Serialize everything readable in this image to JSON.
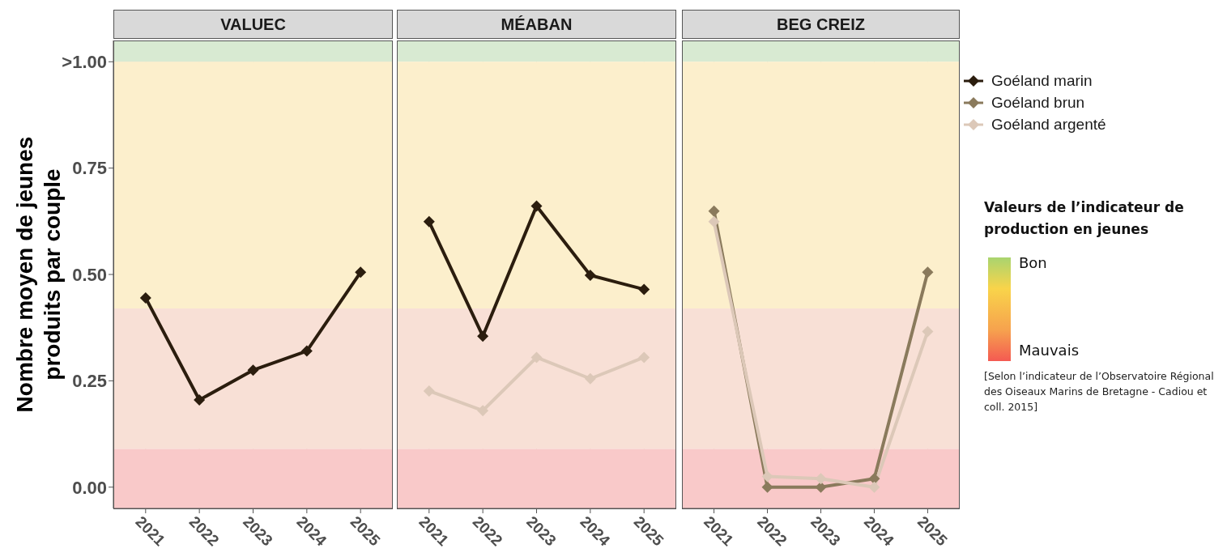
{
  "chart_data": [
    {
      "type": "line",
      "title": "VALUEC",
      "ylabel": "Nombre moyen de jeunes produits par couple",
      "categories": [
        "2021",
        "2022",
        "2023",
        "2024",
        "2025"
      ],
      "series": [
        {
          "name": "Goéland marin",
          "color": "#2b1d0e",
          "values": [
            0.445,
            0.205,
            0.275,
            0.32,
            0.505
          ]
        }
      ],
      "ylim": [
        -0.05,
        1.05
      ],
      "yticks": [
        {
          "value": 0,
          "label": "0.00"
        },
        0.25,
        {
          "value": 0.5,
          "label": "0.50"
        },
        0.75,
        {
          "value": 1,
          "label": ">1.00"
        }
      ],
      "grid": true,
      "marker": "diamond",
      "line_style": "solid",
      "bands": [
        {
          "axis": "y",
          "from": 1,
          "to": 1.05,
          "color": "#d8ead2"
        },
        {
          "axis": "y",
          "from": 0.42,
          "to": 1,
          "color": "#fcefcc"
        },
        {
          "axis": "y",
          "from": 0.09,
          "to": 0.42,
          "color": "#f8e0d6"
        },
        {
          "axis": "y",
          "from": -0.05,
          "to": 0.09,
          "color": "#f9c9c9"
        }
      ]
    },
    {
      "type": "line",
      "title": "MÉABAN",
      "categories": [
        "2021",
        "2022",
        "2023",
        "2024",
        "2025"
      ],
      "series": [
        {
          "name": "Goéland marin",
          "color": "#2b1d0e",
          "values": [
            0.624,
            0.355,
            0.661,
            0.498,
            0.465
          ]
        },
        {
          "name": "Goéland argenté",
          "color": "#dcc8b8",
          "values": [
            0.226,
            0.18,
            0.305,
            0.255,
            0.305
          ]
        }
      ],
      "ylim": [
        -0.05,
        1.05
      ],
      "yticks": [
        0,
        0.25,
        0.5,
        0.75,
        1
      ],
      "tick_labels": "x",
      "grid": true,
      "marker": "diamond",
      "line_style": "solid",
      "bands": [
        {
          "axis": "y",
          "from": 1,
          "to": 1.05,
          "color": "#d8ead2"
        },
        {
          "axis": "y",
          "from": 0.42,
          "to": 1,
          "color": "#fcefcc"
        },
        {
          "axis": "y",
          "from": 0.09,
          "to": 0.42,
          "color": "#f8e0d6"
        },
        {
          "axis": "y",
          "from": -0.05,
          "to": 0.09,
          "color": "#f9c9c9"
        }
      ]
    },
    {
      "type": "line",
      "title": "BEG CREIZ",
      "categories": [
        "2021",
        "2022",
        "2023",
        "2024",
        "2025"
      ],
      "series": [
        {
          "name": "Goéland brun",
          "color": "#8a7a5c",
          "values": [
            0.649,
            0,
            0,
            0.02,
            0.505
          ]
        },
        {
          "name": "Goéland argenté",
          "color": "#dcc8b8",
          "values": [
            0.624,
            0.025,
            0.02,
            0,
            0.366
          ]
        }
      ],
      "ylim": [
        -0.05,
        1.05
      ],
      "yticks": [
        0,
        0.25,
        0.5,
        0.75,
        1
      ],
      "tick_labels": "x",
      "grid": true,
      "marker": "diamond",
      "line_style": "solid",
      "legend": "right",
      "bands": [
        {
          "axis": "y",
          "from": 1,
          "to": 1.05,
          "color": "#d8ead2"
        },
        {
          "axis": "y",
          "from": 0.42,
          "to": 1,
          "color": "#fcefcc"
        },
        {
          "axis": "y",
          "from": 0.09,
          "to": 0.42,
          "color": "#f8e0d6"
        },
        {
          "axis": "y",
          "from": -0.05,
          "to": 0.09,
          "color": "#f9c9c9"
        }
      ],
      "annotations": [
        "Valeurs de l’indicateur de production en jeunes",
        "Bon",
        "Mauvais",
        "[Selon l’indicateur de l’Observatoire Régional des Oiseaux Marins de Bretagne - Cadiou et coll. 2015]"
      ]
    }
  ]
}
